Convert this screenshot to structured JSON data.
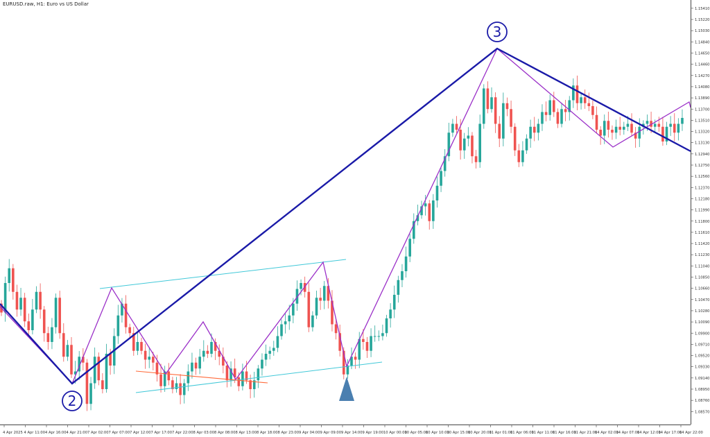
{
  "chart_title": "EURUSD.raw, H1:  Euro vs US Dollar",
  "colors": {
    "bull": "#26a69a",
    "bear": "#ef5350",
    "wave_line": "#1a1aa8",
    "zigzag": "#9b30c8",
    "channel": "#40c8d8",
    "support": "#ff6a3a",
    "marker": "#4a7fb0",
    "grid": "#e8e8e8",
    "axis": "#444444"
  },
  "wave_labels": [
    "2",
    "3"
  ],
  "marker_icon": "up-triangle-icon",
  "chart_data": {
    "type": "candlestick",
    "ylim": [
      1.0835,
      1.1555
    ],
    "y_ticks": [
      "1.15410",
      "1.15220",
      "1.15030",
      "1.14840",
      "1.14650",
      "1.14460",
      "1.14270",
      "1.14080",
      "1.13890",
      "1.13700",
      "1.13510",
      "1.13320",
      "1.13130",
      "1.12940",
      "1.12750",
      "1.12560",
      "1.12370",
      "1.12180",
      "1.11990",
      "1.11800",
      "1.11610",
      "1.11420",
      "1.11230",
      "1.11040",
      "1.10850",
      "1.10660",
      "1.10470",
      "1.10280",
      "1.10090",
      "1.09900",
      "1.09710",
      "1.09520",
      "1.09330",
      "1.09140",
      "1.08950",
      "1.08760",
      "1.08570",
      "1.08380"
    ],
    "x_ticks": [
      "4 Apr 2025",
      "4 Apr 11:00",
      "4 Apr 16:00",
      "4 Apr 21:00",
      "7 Apr 02:00",
      "7 Apr 07:00",
      "7 Apr 12:00",
      "7 Apr 17:00",
      "7 Apr 22:00",
      "8 Apr 03:00",
      "8 Apr 08:00",
      "8 Apr 13:00",
      "8 Apr 18:00",
      "8 Apr 23:00",
      "9 Apr 04:00",
      "9 Apr 09:00",
      "9 Apr 14:00",
      "9 Apr 19:00",
      "10 Apr 00:00",
      "10 Apr 05:00",
      "10 Apr 10:00",
      "10 Apr 15:00",
      "10 Apr 20:00",
      "11 Apr 01:00",
      "11 Apr 06:00",
      "11 Apr 11:00",
      "11 Apr 16:00",
      "11 Apr 21:00",
      "14 Apr 02:00",
      "14 Apr 07:00",
      "14 Apr 12:00",
      "14 Apr 17:00",
      "14 Apr 22:00"
    ],
    "closes": [
      1.1025,
      1.1075,
      1.11,
      1.106,
      1.103,
      1.105,
      1.101,
      1.0995,
      1.103,
      1.106,
      1.103,
      1.099,
      1.0975,
      1.1,
      1.105,
      1.099,
      1.095,
      1.097,
      1.092,
      1.0925,
      1.095,
      1.094,
      1.087,
      1.0905,
      1.095,
      1.091,
      1.0895,
      1.0955,
      1.0935,
      1.0985,
      1.102,
      1.104,
      1.1,
      1.099,
      1.096,
      1.0975,
      1.096,
      1.0945,
      1.095,
      1.094,
      1.092,
      1.09,
      1.0925,
      1.091,
      1.0895,
      1.0905,
      1.0885,
      1.0905,
      1.0925,
      1.094,
      1.093,
      1.095,
      1.096,
      1.0955,
      1.0975,
      1.096,
      1.095,
      1.0935,
      1.091,
      1.093,
      1.0915,
      1.09,
      1.0925,
      1.091,
      1.0895,
      1.091,
      1.093,
      1.0945,
      1.0955,
      1.096,
      1.0965,
      1.0985,
      1.1005,
      1.101,
      1.102,
      1.104,
      1.1065,
      1.1075,
      1.106,
      1.1,
      1.102,
      1.105,
      1.1045,
      1.107,
      1.1045,
      1.1005,
      1.099,
      1.096,
      1.092,
      1.0935,
      1.095,
      1.0945,
      1.098,
      1.0975,
      1.096,
      1.0985,
      1.0985,
      1.0985,
      1.099,
      1.1015,
      1.103,
      1.1055,
      1.108,
      1.1095,
      1.112,
      1.115,
      1.118,
      1.119,
      1.1205,
      1.121,
      1.118,
      1.1215,
      1.124,
      1.1265,
      1.129,
      1.133,
      1.1345,
      1.1335,
      1.13,
      1.132,
      1.1325,
      1.129,
      1.128,
      1.1345,
      1.1405,
      1.137,
      1.139,
      1.1345,
      1.132,
      1.138,
      1.137,
      1.134,
      1.13,
      1.128,
      1.13,
      1.132,
      1.134,
      1.133,
      1.1345,
      1.1365,
      1.136,
      1.1385,
      1.1365,
      1.1345,
      1.137,
      1.1365,
      1.1385,
      1.141,
      1.138,
      1.139,
      1.138,
      1.1375,
      1.136,
      1.1335,
      1.1325,
      1.135,
      1.1335,
      1.133,
      1.134,
      1.1335,
      1.134,
      1.1345,
      1.133,
      1.132,
      1.134,
      1.1345,
      1.135,
      1.134,
      1.1345,
      1.134,
      1.1315,
      1.134,
      1.1345,
      1.133,
      1.1345,
      1.1355
    ]
  }
}
